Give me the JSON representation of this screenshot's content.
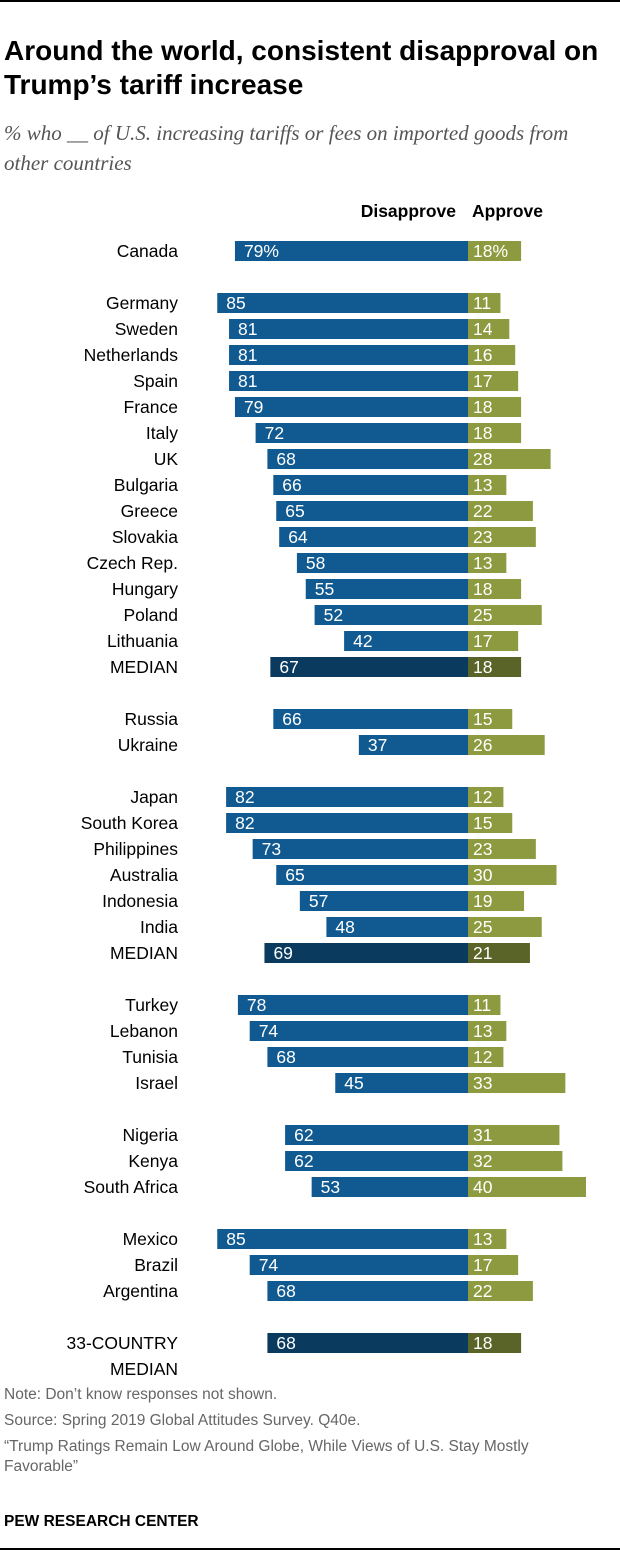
{
  "title": "Around the world, consistent disapproval on Trump’s tariff increase",
  "subtitle": "% who __ of U.S. increasing tariffs or fees on imported goods from other countries",
  "note": "Note: Don’t know responses not shown.",
  "source": "Source: Spring 2019 Global Attitudes Survey. Q40e.",
  "report": "“Trump Ratings Remain Low Around Globe, While Views of U.S. Stay Mostly Favorable”",
  "brand": "PEW RESEARCH CENTER",
  "colors": {
    "disapprove": "#105a91",
    "approve": "#8d9a3f",
    "disapprove_median": "#0a3b5f",
    "approve_median": "#5a6428"
  },
  "chart_data": {
    "type": "bar",
    "orientation": "horizontal",
    "stacked": "diverging",
    "title": "Around the world, consistent disapproval on Trump’s tariff increase",
    "xlabel": "",
    "ylabel": "",
    "unit": "%",
    "series": [
      {
        "name": "Disapprove",
        "direction": "left"
      },
      {
        "name": "Approve",
        "direction": "right"
      }
    ],
    "rows": [
      {
        "label": "Canada",
        "disapprove": 79,
        "approve": 18,
        "disapprove_label": "79%",
        "approve_label": "18%",
        "median": false,
        "group": 0
      },
      {
        "label": "Germany",
        "disapprove": 85,
        "approve": 11,
        "disapprove_label": "85",
        "approve_label": "11",
        "median": false,
        "group": 1
      },
      {
        "label": "Sweden",
        "disapprove": 81,
        "approve": 14,
        "disapprove_label": "81",
        "approve_label": "14",
        "median": false,
        "group": 1
      },
      {
        "label": "Netherlands",
        "disapprove": 81,
        "approve": 16,
        "disapprove_label": "81",
        "approve_label": "16",
        "median": false,
        "group": 1
      },
      {
        "label": "Spain",
        "disapprove": 81,
        "approve": 17,
        "disapprove_label": "81",
        "approve_label": "17",
        "median": false,
        "group": 1
      },
      {
        "label": "France",
        "disapprove": 79,
        "approve": 18,
        "disapprove_label": "79",
        "approve_label": "18",
        "median": false,
        "group": 1
      },
      {
        "label": "Italy",
        "disapprove": 72,
        "approve": 18,
        "disapprove_label": "72",
        "approve_label": "18",
        "median": false,
        "group": 1
      },
      {
        "label": "UK",
        "disapprove": 68,
        "approve": 28,
        "disapprove_label": "68",
        "approve_label": "28",
        "median": false,
        "group": 1
      },
      {
        "label": "Bulgaria",
        "disapprove": 66,
        "approve": 13,
        "disapprove_label": "66",
        "approve_label": "13",
        "median": false,
        "group": 1
      },
      {
        "label": "Greece",
        "disapprove": 65,
        "approve": 22,
        "disapprove_label": "65",
        "approve_label": "22",
        "median": false,
        "group": 1
      },
      {
        "label": "Slovakia",
        "disapprove": 64,
        "approve": 23,
        "disapprove_label": "64",
        "approve_label": "23",
        "median": false,
        "group": 1
      },
      {
        "label": "Czech Rep.",
        "disapprove": 58,
        "approve": 13,
        "disapprove_label": "58",
        "approve_label": "13",
        "median": false,
        "group": 1
      },
      {
        "label": "Hungary",
        "disapprove": 55,
        "approve": 18,
        "disapprove_label": "55",
        "approve_label": "18",
        "median": false,
        "group": 1
      },
      {
        "label": "Poland",
        "disapprove": 52,
        "approve": 25,
        "disapprove_label": "52",
        "approve_label": "25",
        "median": false,
        "group": 1
      },
      {
        "label": "Lithuania",
        "disapprove": 42,
        "approve": 17,
        "disapprove_label": "42",
        "approve_label": "17",
        "median": false,
        "group": 1
      },
      {
        "label": "MEDIAN",
        "disapprove": 67,
        "approve": 18,
        "disapprove_label": "67",
        "approve_label": "18",
        "median": true,
        "group": 1
      },
      {
        "label": "Russia",
        "disapprove": 66,
        "approve": 15,
        "disapprove_label": "66",
        "approve_label": "15",
        "median": false,
        "group": 2
      },
      {
        "label": "Ukraine",
        "disapprove": 37,
        "approve": 26,
        "disapprove_label": "37",
        "approve_label": "26",
        "median": false,
        "group": 2
      },
      {
        "label": "Japan",
        "disapprove": 82,
        "approve": 12,
        "disapprove_label": "82",
        "approve_label": "12",
        "median": false,
        "group": 3
      },
      {
        "label": "South Korea",
        "disapprove": 82,
        "approve": 15,
        "disapprove_label": "82",
        "approve_label": "15",
        "median": false,
        "group": 3
      },
      {
        "label": "Philippines",
        "disapprove": 73,
        "approve": 23,
        "disapprove_label": "73",
        "approve_label": "23",
        "median": false,
        "group": 3
      },
      {
        "label": "Australia",
        "disapprove": 65,
        "approve": 30,
        "disapprove_label": "65",
        "approve_label": "30",
        "median": false,
        "group": 3
      },
      {
        "label": "Indonesia",
        "disapprove": 57,
        "approve": 19,
        "disapprove_label": "57",
        "approve_label": "19",
        "median": false,
        "group": 3
      },
      {
        "label": "India",
        "disapprove": 48,
        "approve": 25,
        "disapprove_label": "48",
        "approve_label": "25",
        "median": false,
        "group": 3
      },
      {
        "label": "MEDIAN",
        "disapprove": 69,
        "approve": 21,
        "disapprove_label": "69",
        "approve_label": "21",
        "median": true,
        "group": 3
      },
      {
        "label": "Turkey",
        "disapprove": 78,
        "approve": 11,
        "disapprove_label": "78",
        "approve_label": "11",
        "median": false,
        "group": 4
      },
      {
        "label": "Lebanon",
        "disapprove": 74,
        "approve": 13,
        "disapprove_label": "74",
        "approve_label": "13",
        "median": false,
        "group": 4
      },
      {
        "label": "Tunisia",
        "disapprove": 68,
        "approve": 12,
        "disapprove_label": "68",
        "approve_label": "12",
        "median": false,
        "group": 4
      },
      {
        "label": "Israel",
        "disapprove": 45,
        "approve": 33,
        "disapprove_label": "45",
        "approve_label": "33",
        "median": false,
        "group": 4
      },
      {
        "label": "Nigeria",
        "disapprove": 62,
        "approve": 31,
        "disapprove_label": "62",
        "approve_label": "31",
        "median": false,
        "group": 5
      },
      {
        "label": "Kenya",
        "disapprove": 62,
        "approve": 32,
        "disapprove_label": "62",
        "approve_label": "32",
        "median": false,
        "group": 5
      },
      {
        "label": "South Africa",
        "disapprove": 53,
        "approve": 40,
        "disapprove_label": "53",
        "approve_label": "40",
        "median": false,
        "group": 5
      },
      {
        "label": "Mexico",
        "disapprove": 85,
        "approve": 13,
        "disapprove_label": "85",
        "approve_label": "13",
        "median": false,
        "group": 6
      },
      {
        "label": "Brazil",
        "disapprove": 74,
        "approve": 17,
        "disapprove_label": "74",
        "approve_label": "17",
        "median": false,
        "group": 6
      },
      {
        "label": "Argentina",
        "disapprove": 68,
        "approve": 22,
        "disapprove_label": "68",
        "approve_label": "22",
        "median": false,
        "group": 6
      },
      {
        "label": "33-COUNTRY MEDIAN",
        "label_lines": [
          "33-COUNTRY",
          "MEDIAN"
        ],
        "disapprove": 68,
        "approve": 18,
        "disapprove_label": "68",
        "approve_label": "18",
        "median": true,
        "group": 7
      }
    ]
  }
}
